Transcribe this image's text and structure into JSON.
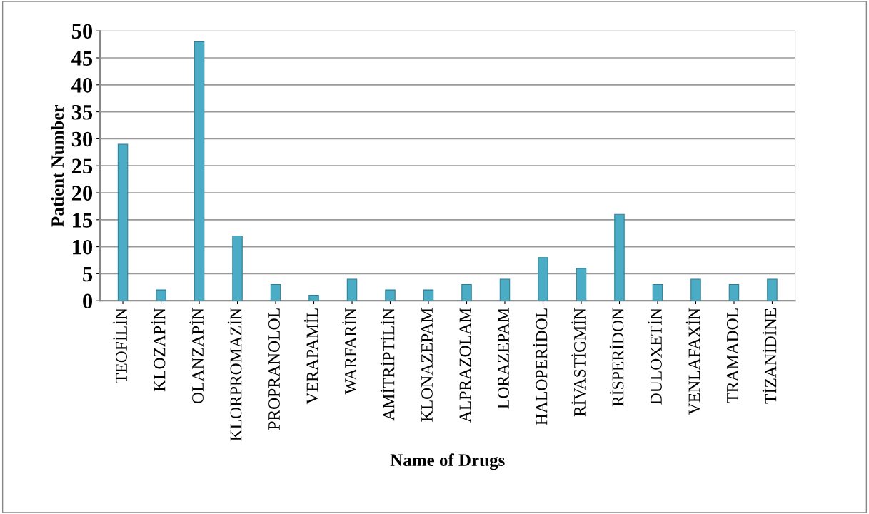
{
  "chart_data": {
    "type": "bar",
    "xlabel": "Name of Drugs",
    "ylabel": "Patient Number",
    "categories": [
      "TEOFİLİN",
      "KLOZAPİN",
      "OLANZAPİN",
      "KLORPROMAZİN",
      "PROPRANOLOL",
      "VERAPAMİL",
      "WARFARİN",
      "AMİTRİPTİLİN",
      "KLONAZEPAM",
      "ALPRAZOLAM",
      "LORAZEPAM",
      "HALOPERİDOL",
      "RİVASTİGMİN",
      "RİSPERİDON",
      "DULOXETİN",
      "VENLAFAXİN",
      "TRAMADOL",
      "TİZANİDİNE"
    ],
    "values": [
      29,
      2,
      48,
      12,
      3,
      1,
      4,
      2,
      2,
      3,
      4,
      8,
      6,
      16,
      3,
      4,
      3,
      4
    ],
    "color": "#4bacc6",
    "ylim": [
      0,
      50
    ],
    "yticks": [
      0,
      5,
      10,
      15,
      20,
      25,
      30,
      35,
      40,
      45,
      50
    ],
    "grid": "y"
  }
}
